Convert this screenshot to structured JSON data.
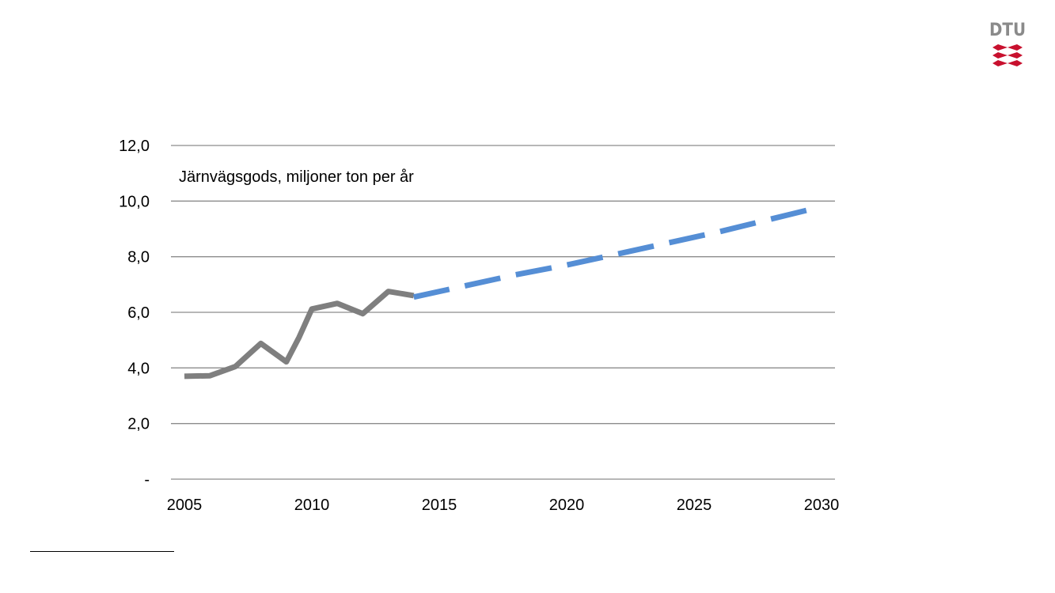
{
  "logo": {
    "text": "DTU",
    "text_color": "#8a8a8a",
    "mark_color": "#c8102e"
  },
  "chart_data": {
    "type": "line",
    "title": "",
    "annotation": "Järnvägsgods, miljoner ton per år",
    "xlabel": "",
    "ylabel": "",
    "xlim": [
      2005,
      2030
    ],
    "ylim": [
      0,
      12
    ],
    "x_ticks": [
      2005,
      2010,
      2015,
      2020,
      2025,
      2030
    ],
    "x_tick_labels": [
      "2005",
      "2010",
      "2015",
      "2020",
      "2025",
      "2030"
    ],
    "y_ticks": [
      0,
      2,
      4,
      6,
      8,
      10,
      12
    ],
    "y_tick_labels": [
      "-",
      "2,0",
      "4,0",
      "6,0",
      "8,0",
      "10,0",
      "12,0"
    ],
    "grid": true,
    "legend": "none",
    "series": [
      {
        "style": "solid",
        "color": "#7f7f7f",
        "points": [
          [
            2005,
            3.7
          ],
          [
            2006,
            3.72
          ],
          [
            2007,
            4.05
          ],
          [
            2007.6,
            4.55
          ],
          [
            2008,
            4.88
          ],
          [
            2008.5,
            4.55
          ],
          [
            2009,
            4.22
          ],
          [
            2009.5,
            5.1
          ],
          [
            2010,
            6.12
          ],
          [
            2011,
            6.32
          ],
          [
            2012,
            5.95
          ],
          [
            2013,
            6.75
          ],
          [
            2014,
            6.6
          ]
        ]
      },
      {
        "style": "dashed",
        "color": "#558ed5",
        "points": [
          [
            2014,
            6.55
          ],
          [
            2016,
            6.95
          ],
          [
            2018,
            7.35
          ],
          [
            2020,
            7.7
          ],
          [
            2022,
            8.1
          ],
          [
            2024,
            8.5
          ],
          [
            2026,
            8.9
          ],
          [
            2028,
            9.35
          ],
          [
            2030,
            9.8
          ]
        ]
      }
    ]
  }
}
